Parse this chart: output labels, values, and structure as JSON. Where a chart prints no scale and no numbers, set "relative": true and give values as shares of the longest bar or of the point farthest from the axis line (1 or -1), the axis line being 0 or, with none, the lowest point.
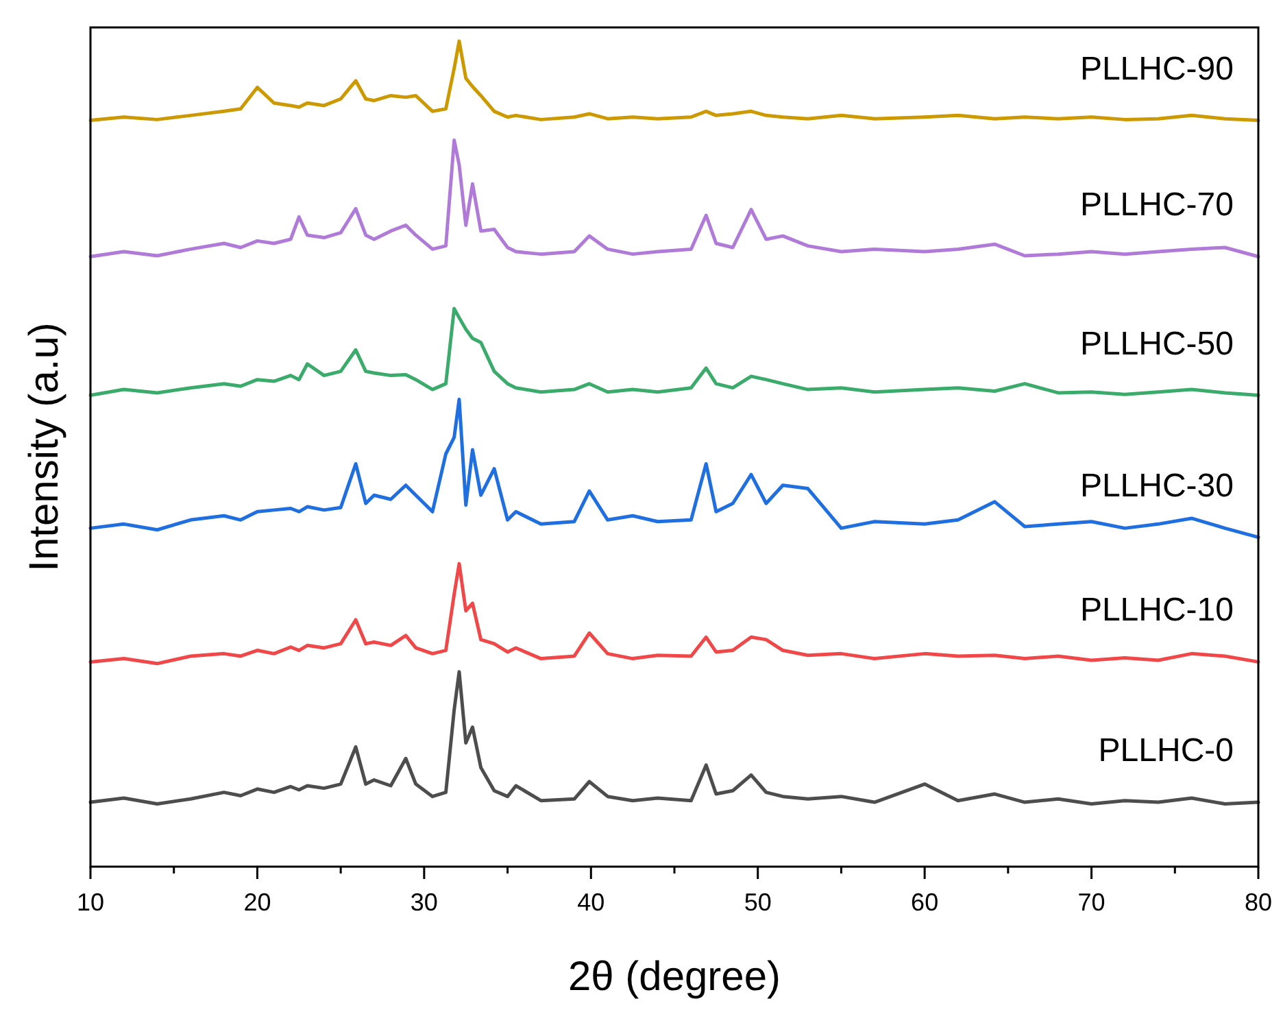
{
  "chart_data": {
    "type": "line",
    "relative": true,
    "xlabel": "2θ (degree)",
    "ylabel": "Intensity (a.u)",
    "xlim": [
      10,
      80
    ],
    "xticks": [
      10,
      {
        "value": 15,
        "label": null
      },
      20,
      {
        "value": 25,
        "label": null
      },
      30,
      {
        "value": 35,
        "label": null
      },
      40,
      {
        "value": 45,
        "label": null
      },
      50,
      {
        "value": 55,
        "label": null
      },
      60,
      {
        "value": 65,
        "label": null
      },
      70,
      {
        "value": 75,
        "label": null
      },
      80
    ],
    "x": [
      10,
      12,
      14,
      16,
      18,
      19,
      20,
      21,
      22,
      22.5,
      23,
      24,
      25,
      25.9,
      26.5,
      27,
      28,
      28.9,
      29.5,
      30.5,
      31.3,
      31.8,
      32.1,
      32.5,
      32.9,
      33.4,
      34.2,
      35,
      35.5,
      37,
      39,
      39.9,
      41,
      42.5,
      44,
      46,
      46.9,
      47.5,
      48.5,
      49.6,
      50.5,
      51.5,
      53,
      55,
      57,
      60,
      62,
      64.2,
      66,
      68,
      70,
      72,
      74,
      76,
      78,
      80
    ],
    "series": [
      {
        "name": "PLLHC-0",
        "color": "#4d4d4d",
        "values": [
          0.078,
          0.083,
          0.076,
          0.082,
          0.09,
          0.086,
          0.094,
          0.09,
          0.097,
          0.093,
          0.098,
          0.095,
          0.1,
          0.145,
          0.1,
          0.105,
          0.098,
          0.131,
          0.1,
          0.085,
          0.09,
          0.19,
          0.236,
          0.15,
          0.169,
          0.12,
          0.092,
          0.085,
          0.098,
          0.08,
          0.082,
          0.103,
          0.085,
          0.08,
          0.083,
          0.08,
          0.123,
          0.088,
          0.092,
          0.111,
          0.09,
          0.085,
          0.082,
          0.085,
          0.078,
          0.1,
          0.08,
          0.088,
          0.078,
          0.082,
          0.076,
          0.08,
          0.078,
          0.083,
          0.076,
          0.078
        ]
      },
      {
        "name": "PLLHC-10",
        "color": "#f04848",
        "values": [
          0.248,
          0.252,
          0.246,
          0.255,
          0.258,
          0.255,
          0.262,
          0.258,
          0.266,
          0.262,
          0.268,
          0.265,
          0.27,
          0.299,
          0.27,
          0.272,
          0.268,
          0.28,
          0.265,
          0.258,
          0.262,
          0.33,
          0.367,
          0.31,
          0.319,
          0.275,
          0.27,
          0.26,
          0.265,
          0.252,
          0.255,
          0.283,
          0.258,
          0.252,
          0.256,
          0.255,
          0.278,
          0.26,
          0.262,
          0.278,
          0.275,
          0.262,
          0.256,
          0.258,
          0.252,
          0.258,
          0.255,
          0.256,
          0.252,
          0.255,
          0.25,
          0.253,
          0.25,
          0.258,
          0.255,
          0.248
        ]
      },
      {
        "name": "PLLHC-30",
        "color": "#1f6fe0",
        "values": [
          0.41,
          0.415,
          0.408,
          0.42,
          0.425,
          0.42,
          0.43,
          0.432,
          0.434,
          0.43,
          0.436,
          0.432,
          0.435,
          0.488,
          0.44,
          0.45,
          0.445,
          0.462,
          0.45,
          0.43,
          0.5,
          0.52,
          0.566,
          0.438,
          0.505,
          0.45,
          0.482,
          0.42,
          0.43,
          0.415,
          0.418,
          0.455,
          0.42,
          0.425,
          0.418,
          0.42,
          0.488,
          0.43,
          0.44,
          0.475,
          0.44,
          0.462,
          0.458,
          0.41,
          0.418,
          0.415,
          0.42,
          0.442,
          0.412,
          0.415,
          0.418,
          0.41,
          0.415,
          0.422,
          0.41,
          0.399
        ]
      },
      {
        "name": "PLLHC-50",
        "color": "#3aab6a",
        "values": [
          0.571,
          0.578,
          0.574,
          0.58,
          0.585,
          0.582,
          0.59,
          0.588,
          0.595,
          0.59,
          0.609,
          0.595,
          0.6,
          0.626,
          0.6,
          0.598,
          0.595,
          0.596,
          0.59,
          0.578,
          0.585,
          0.676,
          0.665,
          0.651,
          0.64,
          0.635,
          0.6,
          0.585,
          0.58,
          0.575,
          0.578,
          0.585,
          0.575,
          0.578,
          0.575,
          0.58,
          0.604,
          0.585,
          0.58,
          0.594,
          0.59,
          0.585,
          0.578,
          0.58,
          0.575,
          0.578,
          0.58,
          0.576,
          0.585,
          0.574,
          0.575,
          0.572,
          0.575,
          0.578,
          0.574,
          0.571
        ]
      },
      {
        "name": "PLLHC-70",
        "color": "#b07ad9",
        "values": [
          0.739,
          0.745,
          0.74,
          0.748,
          0.755,
          0.75,
          0.758,
          0.755,
          0.76,
          0.787,
          0.765,
          0.762,
          0.768,
          0.797,
          0.765,
          0.76,
          0.77,
          0.777,
          0.765,
          0.748,
          0.752,
          0.88,
          0.85,
          0.777,
          0.827,
          0.77,
          0.772,
          0.75,
          0.745,
          0.742,
          0.745,
          0.764,
          0.748,
          0.742,
          0.745,
          0.748,
          0.789,
          0.755,
          0.75,
          0.796,
          0.76,
          0.764,
          0.752,
          0.745,
          0.748,
          0.745,
          0.748,
          0.754,
          0.74,
          0.742,
          0.745,
          0.742,
          0.745,
          0.748,
          0.75,
          0.739
        ]
      },
      {
        "name": "PLLHC-90",
        "color": "#cc9900",
        "values": [
          0.904,
          0.908,
          0.905,
          0.91,
          0.915,
          0.918,
          0.944,
          0.925,
          0.922,
          0.92,
          0.925,
          0.922,
          0.93,
          0.952,
          0.93,
          0.928,
          0.934,
          0.932,
          0.934,
          0.915,
          0.918,
          0.967,
          1.0,
          0.955,
          0.945,
          0.934,
          0.915,
          0.908,
          0.91,
          0.905,
          0.908,
          0.912,
          0.906,
          0.908,
          0.906,
          0.908,
          0.915,
          0.91,
          0.912,
          0.915,
          0.91,
          0.908,
          0.906,
          0.91,
          0.906,
          0.908,
          0.91,
          0.906,
          0.908,
          0.906,
          0.908,
          0.905,
          0.906,
          0.91,
          0.906,
          0.904
        ]
      }
    ]
  }
}
